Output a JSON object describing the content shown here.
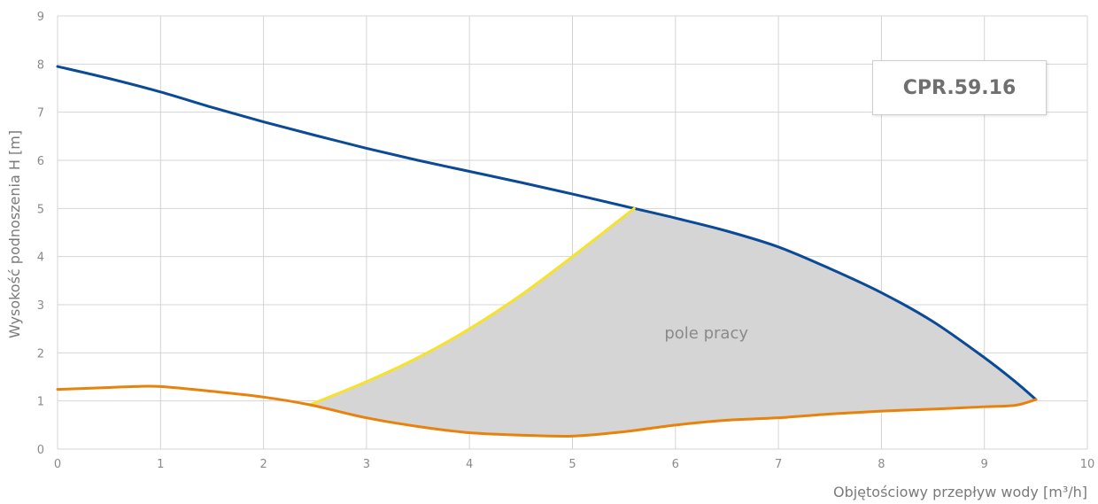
{
  "chart_data": {
    "type": "line",
    "xlabel": "Objętościowy przepływ wody [m³/h]",
    "ylabel": "Wysokość podnoszenia H [m]",
    "xlim": [
      0,
      10
    ],
    "ylim": [
      0,
      9
    ],
    "xticks": [
      0,
      1,
      2,
      3,
      4,
      5,
      6,
      7,
      8,
      9,
      10
    ],
    "yticks": [
      0,
      1,
      2,
      3,
      4,
      5,
      6,
      7,
      8,
      9
    ],
    "grid": true,
    "annotation": "pole pracy",
    "series": [
      {
        "color": "#0b4a96",
        "x": [
          0,
          0.5,
          1.0,
          1.5,
          2.0,
          2.5,
          3.0,
          3.5,
          4.0,
          4.5,
          5.0,
          5.5,
          5.6,
          6.0,
          6.5,
          7.0,
          7.5,
          8.0,
          8.5,
          9.0,
          9.3,
          9.5
        ],
        "y": [
          7.95,
          7.7,
          7.42,
          7.1,
          6.8,
          6.52,
          6.25,
          6.0,
          5.77,
          5.54,
          5.3,
          5.05,
          5.0,
          4.8,
          4.53,
          4.2,
          3.75,
          3.25,
          2.65,
          1.9,
          1.4,
          1.03
        ]
      },
      {
        "color": "#f7e22a",
        "x": [
          2.45,
          3.0,
          3.5,
          4.0,
          4.5,
          5.0,
          5.3,
          5.6
        ],
        "y": [
          0.92,
          1.4,
          1.9,
          2.5,
          3.2,
          4.0,
          4.5,
          5.0
        ]
      },
      {
        "color": "#e8820c",
        "x": [
          0,
          0.5,
          0.75,
          1.0,
          1.5,
          2.0,
          2.45,
          3.0,
          3.5,
          4.0,
          4.5,
          5.0,
          5.5,
          6.0,
          6.5,
          7.0,
          7.5,
          8.0,
          8.5,
          9.0,
          9.3,
          9.5
        ],
        "y": [
          1.24,
          1.28,
          1.3,
          1.3,
          1.2,
          1.08,
          0.92,
          0.65,
          0.47,
          0.34,
          0.29,
          0.27,
          0.36,
          0.5,
          0.6,
          0.65,
          0.73,
          0.79,
          0.83,
          0.88,
          0.91,
          1.03
        ]
      }
    ],
    "shaded_region": {
      "label": "pole pracy",
      "color": "#d5d5d5",
      "upper_left_x": [
        2.45,
        3.0,
        3.5,
        4.0,
        4.5,
        5.0,
        5.3,
        5.6
      ],
      "upper_left_y": [
        0.92,
        1.4,
        1.9,
        2.5,
        3.2,
        4.0,
        4.5,
        5.0
      ],
      "upper_right_x": [
        5.6,
        6.0,
        6.5,
        7.0,
        7.5,
        8.0,
        8.5,
        9.0,
        9.3,
        9.5
      ],
      "upper_right_y": [
        5.0,
        4.8,
        4.53,
        4.2,
        3.75,
        3.25,
        2.65,
        1.9,
        1.4,
        1.03
      ],
      "lower_x": [
        2.45,
        3.0,
        3.5,
        4.0,
        4.5,
        5.0,
        5.5,
        6.0,
        6.5,
        7.0,
        7.5,
        8.0,
        8.5,
        9.0,
        9.3,
        9.5
      ],
      "lower_y": [
        0.92,
        0.65,
        0.47,
        0.34,
        0.29,
        0.27,
        0.36,
        0.5,
        0.6,
        0.65,
        0.73,
        0.79,
        0.83,
        0.88,
        0.91,
        1.03
      ]
    },
    "model_label": "CPR.59.16"
  }
}
